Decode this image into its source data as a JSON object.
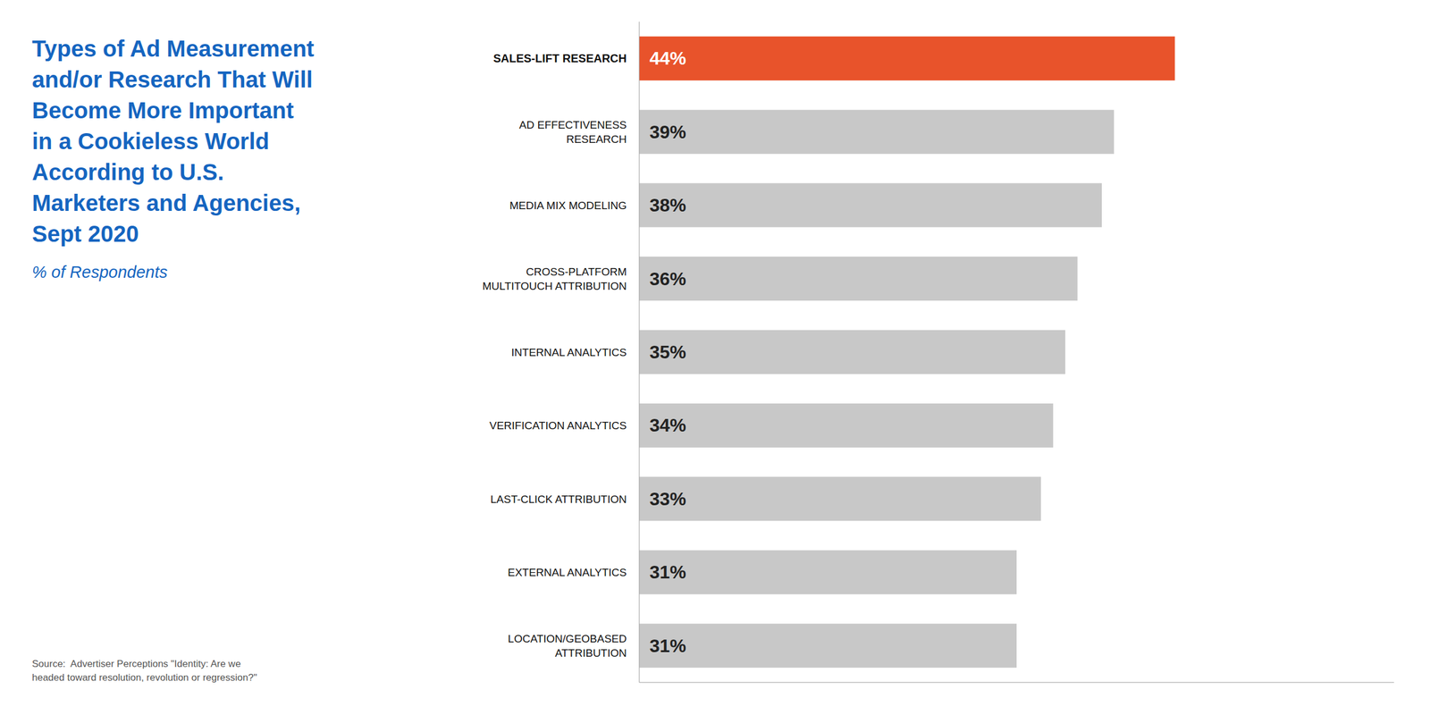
{
  "chart_data": {
    "type": "bar",
    "orientation": "horizontal",
    "title": "Types of Ad Measurement\nand/or Research That Will\nBecome More Important\nin a Cookieless World\nAccording to U.S.\nMarketers and Agencies,\nSept 2020",
    "subtitle": "% of Respondents",
    "annotations": [
      "Source:  Advertiser Perceptions \"Identity: Are we\nheaded toward resolution, revolution or regression?\""
    ],
    "categories": [
      "SALES-LIFT RESEARCH",
      "AD EFFECTIVENESS\nRESEARCH",
      "MEDIA MIX MODELING",
      "CROSS-PLATFORM\nMULTITOUCH ATTRIBUTION",
      "INTERNAL ANALYTICS",
      "VERIFICATION ANALYTICS",
      "LAST-CLICK ATTRIBUTION",
      "EXTERNAL ANALYTICS",
      "LOCATION/GEOBASED\nATTRIBUTION"
    ],
    "values": [
      44,
      39,
      38,
      36,
      35,
      34,
      33,
      31,
      31
    ],
    "value_labels": [
      "44%",
      "39%",
      "38%",
      "36%",
      "35%",
      "34%",
      "33%",
      "31%",
      "31%"
    ],
    "data_labels": true,
    "colors": [
      "#E8532B",
      "#C8C8C8",
      "#C8C8C8",
      "#C8C8C8",
      "#C8C8C8",
      "#C8C8C8",
      "#C8C8C8",
      "#C8C8C8",
      "#C8C8C8"
    ],
    "xlim": [
      0,
      62
    ],
    "tick_labels": "y"
  }
}
